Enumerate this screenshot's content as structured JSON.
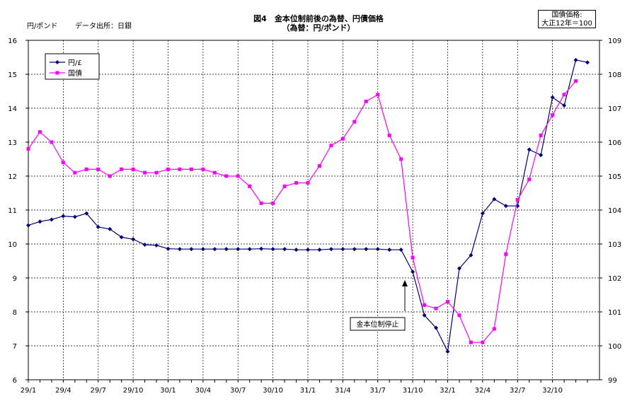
{
  "header": {
    "title_line1": "図4　金本位制前後の為替、円債価格",
    "title_line2": "（為替：円/ポンド）",
    "unit_left": "円/ポンド",
    "source": "データ出所：日銀",
    "unit_right_line1": "国債価格:",
    "unit_right_line2": "大正12年＝100"
  },
  "chart_data": {
    "type": "line",
    "title": "図4　金本位制前後の為替、円債価格",
    "subtitle": "（為替：円/ポンド）",
    "ylabel": "円/ポンド",
    "y2label": "国債価格:大正12年＝100",
    "ylim": [
      6,
      16
    ],
    "y2lim": [
      99,
      109
    ],
    "yticks": [
      6,
      7,
      8,
      9,
      10,
      11,
      12,
      13,
      14,
      15,
      16
    ],
    "y2ticks": [
      99,
      100,
      101,
      102,
      103,
      104,
      105,
      106,
      107,
      108,
      109
    ],
    "x_tick_labels": [
      "29/1",
      "29/4",
      "29/7",
      "29/10",
      "30/1",
      "30/4",
      "30/7",
      "30/10",
      "31/1",
      "31/4",
      "31/7",
      "31/10",
      "32/1",
      "32/4",
      "32/7",
      "32/10"
    ],
    "grid": true,
    "legend": "top-left",
    "series": [
      {
        "name": "円/£",
        "axis": "left",
        "color": "#000080",
        "marker": "diamond",
        "values": [
          10.55,
          10.66,
          10.72,
          10.82,
          10.8,
          10.9,
          10.5,
          10.44,
          10.2,
          10.14,
          9.98,
          9.96,
          9.86,
          9.85,
          9.85,
          9.85,
          9.85,
          9.85,
          9.85,
          9.85,
          9.86,
          9.85,
          9.85,
          9.83,
          9.83,
          9.83,
          9.85,
          9.85,
          9.85,
          9.85,
          9.85,
          9.83,
          9.83,
          9.18,
          7.9,
          7.53,
          6.83,
          9.28,
          9.67,
          10.9,
          11.32,
          11.12,
          11.12,
          12.78,
          12.62,
          14.32,
          14.08,
          15.42,
          15.35
        ]
      },
      {
        "name": "国債",
        "axis": "right",
        "color": "#ff00ff",
        "marker": "square",
        "values": [
          105.8,
          106.3,
          106.0,
          105.4,
          105.1,
          105.2,
          105.2,
          105.0,
          105.2,
          105.2,
          105.1,
          105.1,
          105.2,
          105.2,
          105.2,
          105.2,
          105.1,
          105.0,
          105.0,
          104.7,
          104.2,
          104.2,
          104.7,
          104.8,
          104.8,
          105.3,
          105.9,
          106.1,
          106.6,
          107.2,
          107.4,
          106.2,
          105.5,
          102.6,
          101.2,
          101.1,
          101.3,
          100.9,
          100.1,
          100.1,
          100.5,
          102.7,
          104.3,
          104.9,
          106.2,
          106.8,
          107.4,
          107.8
        ]
      }
    ],
    "annotations": [
      {
        "text": "金本位制停止",
        "x_index": 32,
        "y": 9
      }
    ]
  }
}
